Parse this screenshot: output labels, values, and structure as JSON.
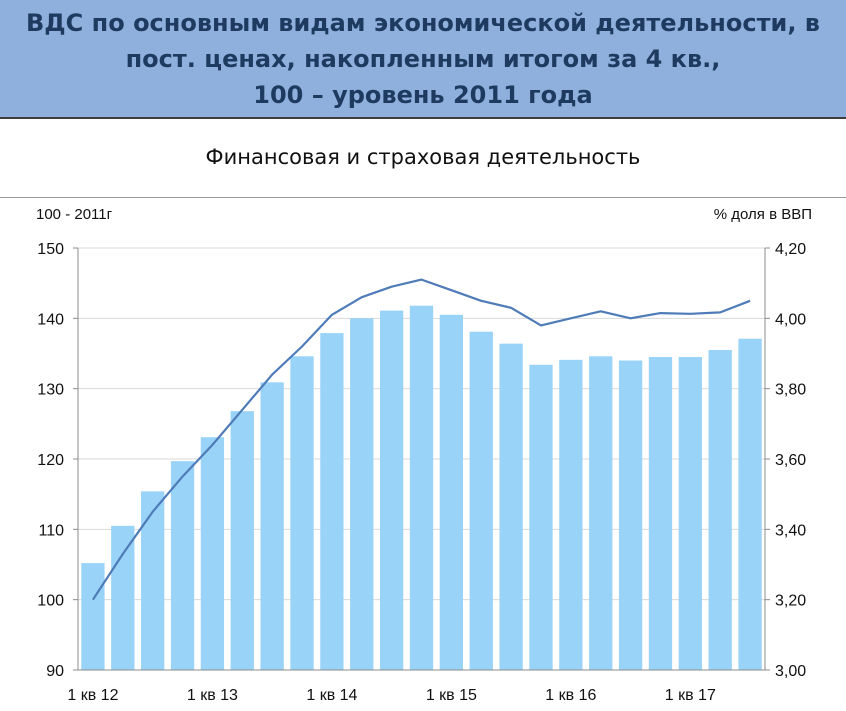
{
  "header": {
    "lines": [
      "ВДС по основным видам экономической деятельности, в",
      "пост. ценах, накопленным итогом за 4 кв.,",
      "100 – уровень 2011 года"
    ]
  },
  "chart_data": {
    "type": "bar",
    "title": "Финансовая и страховая деятельность",
    "left_axis_label": "100 - 2011г",
    "right_axis_label": "%  доля в ВВП",
    "ylim_left": [
      90,
      150
    ],
    "yticks_left": [
      "90",
      "100",
      "110",
      "120",
      "130",
      "140",
      "150"
    ],
    "ylim_right": [
      3.0,
      4.2
    ],
    "yticks_right": [
      "3,00",
      "3,20",
      "3,40",
      "3,60",
      "3,80",
      "4,00",
      "4,20"
    ],
    "xtick_labels": [
      "1 кв 12",
      "1 кв 13",
      "1 кв 14",
      "1 кв 15",
      "1 кв 16",
      "1 кв 17"
    ],
    "grid": true,
    "bar_color": "#99d3f7",
    "line_color": "#4f7cb8",
    "series": [
      {
        "axis": "left",
        "type": "bar",
        "values": [
          105.2,
          110.5,
          115.4,
          119.7,
          123.1,
          126.8,
          130.9,
          134.6,
          137.9,
          140.0,
          141.1,
          141.8,
          140.5,
          138.1,
          136.4,
          133.4,
          134.1,
          134.6,
          134.0,
          134.5,
          134.5,
          135.5,
          137.1
        ]
      },
      {
        "axis": "right",
        "type": "line",
        "values": [
          3.2,
          3.33,
          3.45,
          3.55,
          3.64,
          3.74,
          3.84,
          3.92,
          4.01,
          4.06,
          4.09,
          4.11,
          4.08,
          4.05,
          4.03,
          3.98,
          4.0,
          4.02,
          4.0,
          4.015,
          4.013,
          4.017,
          4.05
        ]
      }
    ]
  }
}
